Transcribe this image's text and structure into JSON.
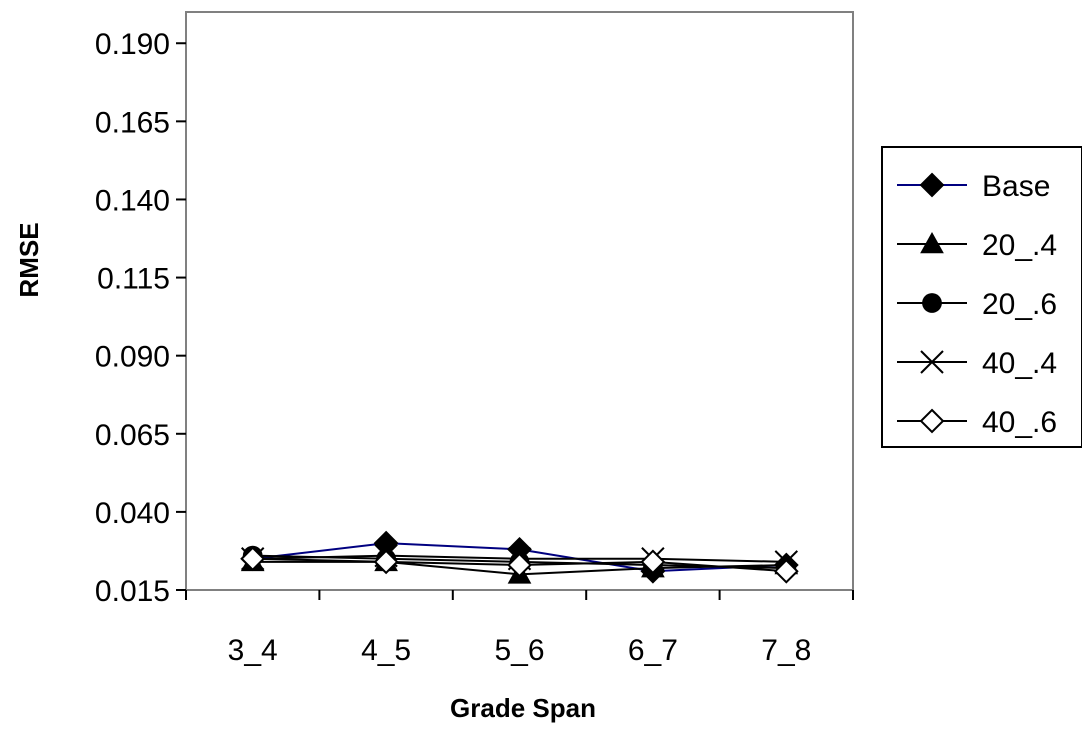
{
  "chart_data": {
    "type": "line",
    "title": "",
    "xlabel": "Grade Span",
    "ylabel": "RMSE",
    "categories": [
      "3_4",
      "4_5",
      "5_6",
      "6_7",
      "7_8"
    ],
    "ylim": [
      0.015,
      0.2
    ],
    "yticks": [
      "0.190",
      "0.165",
      "0.140",
      "0.115",
      "0.090",
      "0.065",
      "0.040",
      "0.015"
    ],
    "grid": false,
    "legend_position": "right",
    "series": [
      {
        "name": "Base",
        "marker": "diamond-filled",
        "color": "#000080",
        "values": [
          0.025,
          0.03,
          0.028,
          0.021,
          0.023
        ]
      },
      {
        "name": "20_.4",
        "marker": "triangle-filled",
        "color": "#000000",
        "values": [
          0.024,
          0.024,
          0.02,
          0.022,
          0.023
        ]
      },
      {
        "name": "20_.6",
        "marker": "circle-filled",
        "color": "#000000",
        "values": [
          0.026,
          0.025,
          0.024,
          0.023,
          0.022
        ]
      },
      {
        "name": "40_.4",
        "marker": "x",
        "color": "#000000",
        "values": [
          0.025,
          0.026,
          0.025,
          0.025,
          0.024
        ]
      },
      {
        "name": "40_.6",
        "marker": "diamond-open",
        "color": "#000000",
        "values": [
          0.025,
          0.024,
          0.023,
          0.024,
          0.021
        ]
      }
    ]
  }
}
